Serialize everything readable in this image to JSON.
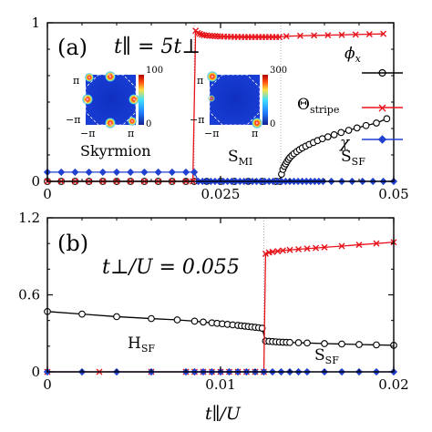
{
  "chart_data": [
    {
      "type": "line",
      "panel_label": "(a)",
      "annotation": "t∥ = 5t⊥",
      "xlim": [
        0,
        0.05
      ],
      "ylim": [
        0,
        1
      ],
      "x_ticks": [
        0,
        0.025,
        0.05
      ],
      "x_tick_labels": [
        "0",
        "0.025",
        "0.05"
      ],
      "y_ticks": [
        0,
        1
      ],
      "y_tick_labels": [
        "0",
        "1"
      ],
      "legend": {
        "placement": "right",
        "entries": [
          {
            "series": "phi",
            "label_main": "ϕ",
            "label_sub": "x"
          },
          {
            "series": "theta",
            "label_main": "Θ",
            "label_sub": "stripe"
          },
          {
            "series": "chi",
            "label_main": "χ",
            "label_sub": ""
          }
        ]
      },
      "region_labels": [
        {
          "main": "Skyrmion",
          "sub": "",
          "x": 0.011,
          "y": 0.3
        },
        {
          "main": "S",
          "sub": "MI",
          "x": 0.0265,
          "y": 0.18
        },
        {
          "main": "S",
          "sub": "SF",
          "x": 0.043,
          "y": 0.18
        }
      ],
      "transitions": [
        0.0212,
        0.0337
      ],
      "series": [
        {
          "id": "phi",
          "color": "#000000",
          "marker": "circle",
          "x": [
            0.0,
            0.002,
            0.004,
            0.006,
            0.008,
            0.01,
            0.012,
            0.014,
            0.016,
            0.018,
            0.02,
            0.0212,
            0.023,
            0.025,
            0.027,
            0.029,
            0.031,
            0.033,
            0.0336,
            0.0338,
            0.034,
            0.0342,
            0.0344,
            0.0346,
            0.0348,
            0.035,
            0.0353,
            0.0356,
            0.036,
            0.0364,
            0.0368,
            0.0373,
            0.0378,
            0.0384,
            0.039,
            0.0397,
            0.0405,
            0.0414,
            0.0424,
            0.0435,
            0.0447,
            0.046,
            0.0475,
            0.049
          ],
          "y": [
            0,
            0,
            0,
            0,
            0,
            0,
            0,
            0,
            0,
            0,
            0,
            0,
            0,
            0,
            0,
            0,
            0,
            0,
            0,
            0.045,
            0.075,
            0.095,
            0.11,
            0.125,
            0.138,
            0.15,
            0.163,
            0.175,
            0.188,
            0.2,
            0.211,
            0.222,
            0.233,
            0.245,
            0.257,
            0.269,
            0.281,
            0.294,
            0.308,
            0.322,
            0.337,
            0.352,
            0.368,
            0.395
          ]
        },
        {
          "id": "theta",
          "color": "#e8141b",
          "marker": "x",
          "x": [
            0.0,
            0.002,
            0.004,
            0.006,
            0.008,
            0.01,
            0.012,
            0.014,
            0.016,
            0.018,
            0.02,
            0.021,
            0.0214,
            0.0217,
            0.022,
            0.0223,
            0.0226,
            0.023,
            0.0234,
            0.0238,
            0.0242,
            0.0246,
            0.025,
            0.0255,
            0.026,
            0.0265,
            0.027,
            0.0275,
            0.028,
            0.0285,
            0.029,
            0.0295,
            0.03,
            0.0305,
            0.031,
            0.0315,
            0.032,
            0.0325,
            0.033,
            0.0335,
            0.0345,
            0.0365,
            0.0385,
            0.0405,
            0.0425,
            0.0445,
            0.0465,
            0.0485
          ],
          "y": [
            0,
            0,
            0,
            0,
            0,
            0,
            0,
            0,
            0,
            0,
            0,
            0,
            0.95,
            0.935,
            0.93,
            0.925,
            0.922,
            0.92,
            0.918,
            0.917,
            0.916,
            0.915,
            0.914,
            0.913,
            0.912,
            0.912,
            0.911,
            0.911,
            0.911,
            0.91,
            0.91,
            0.91,
            0.91,
            0.91,
            0.91,
            0.91,
            0.91,
            0.91,
            0.91,
            0.91,
            0.915,
            0.918,
            0.92,
            0.922,
            0.924,
            0.926,
            0.928,
            0.93
          ]
        },
        {
          "id": "chi",
          "color": "#2040d0",
          "marker": "diamond",
          "x": [
            0.0,
            0.002,
            0.004,
            0.006,
            0.008,
            0.01,
            0.012,
            0.014,
            0.016,
            0.018,
            0.02,
            0.0212,
            0.0218,
            0.0224,
            0.023,
            0.0236,
            0.0242,
            0.0248,
            0.0254,
            0.026,
            0.0266,
            0.0272,
            0.0278,
            0.0284,
            0.029,
            0.0296,
            0.0302,
            0.0308,
            0.0314,
            0.032,
            0.0326,
            0.0332,
            0.0338,
            0.0344,
            0.035,
            0.0356,
            0.0362,
            0.0368,
            0.0374,
            0.038,
            0.0386,
            0.0392,
            0.0398,
            0.041,
            0.0425,
            0.044,
            0.0455,
            0.047,
            0.0485,
            0.05
          ],
          "y": [
            0.058,
            0.058,
            0.058,
            0.058,
            0.058,
            0.058,
            0.058,
            0.058,
            0.058,
            0.058,
            0.058,
            0.058,
            0,
            0,
            0,
            0,
            0,
            0,
            0,
            0,
            0,
            0,
            0,
            0,
            0,
            0,
            0,
            0,
            0,
            0,
            0,
            0,
            0,
            0,
            0,
            0,
            0,
            0,
            0,
            0,
            0,
            0,
            0,
            0,
            0,
            0,
            0,
            0,
            0,
            0
          ]
        }
      ],
      "insets": [
        {
          "id": "skyrmion-inset",
          "colorbar_max": "100",
          "colorbar_min": "0",
          "axis_labels": [
            "π",
            "−π",
            "−π",
            "π"
          ]
        },
        {
          "id": "smi-inset",
          "colorbar_max": "300",
          "colorbar_min": "0",
          "axis_labels": [
            "π",
            "−π",
            "−π",
            "π"
          ]
        }
      ]
    },
    {
      "type": "line",
      "panel_label": "(b)",
      "annotation": "t⊥/U = 0.055",
      "xlim": [
        0,
        0.02
      ],
      "ylim": [
        0,
        1.2
      ],
      "x_ticks": [
        0,
        0.01,
        0.02
      ],
      "x_tick_labels": [
        "0",
        "0.01",
        "0.02"
      ],
      "y_ticks": [
        0,
        0.6,
        1.2
      ],
      "y_tick_labels": [
        "0",
        "0.6",
        "1.2"
      ],
      "xlabel": "t∥/U",
      "region_labels": [
        {
          "main": "H",
          "sub": "SF",
          "x": 0.0035,
          "y": 0.2
        },
        {
          "main": "S",
          "sub": "SF",
          "x": 0.0153,
          "y": 0.08
        }
      ],
      "transitions": [
        0.0125
      ],
      "series": [
        {
          "id": "phi",
          "color": "#000000",
          "marker": "circle",
          "x": [
            0.0,
            0.002,
            0.004,
            0.006,
            0.0075,
            0.0085,
            0.009,
            0.0095,
            0.0098,
            0.0101,
            0.0104,
            0.0107,
            0.011,
            0.0112,
            0.0114,
            0.0116,
            0.0118,
            0.012,
            0.0122,
            0.0124,
            0.0126,
            0.0128,
            0.013,
            0.0132,
            0.0134,
            0.0136,
            0.0138,
            0.014,
            0.0145,
            0.015,
            0.016,
            0.017,
            0.018,
            0.019,
            0.02
          ],
          "y": [
            0.47,
            0.45,
            0.43,
            0.415,
            0.405,
            0.395,
            0.388,
            0.382,
            0.378,
            0.374,
            0.37,
            0.366,
            0.362,
            0.359,
            0.356,
            0.353,
            0.35,
            0.347,
            0.344,
            0.34,
            0.24,
            0.238,
            0.236,
            0.234,
            0.232,
            0.231,
            0.23,
            0.229,
            0.227,
            0.225,
            0.22,
            0.217,
            0.213,
            0.21,
            0.207
          ]
        },
        {
          "id": "theta",
          "color": "#e8141b",
          "marker": "x",
          "x": [
            0.0,
            0.003,
            0.006,
            0.008,
            0.0085,
            0.009,
            0.0095,
            0.01,
            0.0105,
            0.011,
            0.0115,
            0.012,
            0.0125,
            0.0126,
            0.0128,
            0.013,
            0.0133,
            0.0136,
            0.014,
            0.0145,
            0.015,
            0.0155,
            0.016,
            0.017,
            0.018,
            0.019,
            0.02
          ],
          "y": [
            0,
            0,
            0,
            0,
            0,
            0,
            0,
            0,
            0,
            0,
            0,
            0,
            0,
            0.92,
            0.93,
            0.935,
            0.94,
            0.945,
            0.95,
            0.955,
            0.96,
            0.965,
            0.97,
            0.98,
            0.99,
            1.0,
            1.01
          ]
        },
        {
          "id": "chi",
          "color": "#2040d0",
          "marker": "diamond",
          "x": [
            0.0,
            0.002,
            0.004,
            0.006,
            0.008,
            0.0085,
            0.009,
            0.0095,
            0.01,
            0.0105,
            0.011,
            0.0115,
            0.012,
            0.0125,
            0.013,
            0.0135,
            0.014,
            0.0145,
            0.015,
            0.016,
            0.017,
            0.018,
            0.019,
            0.02
          ],
          "y": [
            0,
            0,
            0,
            0,
            0,
            0,
            0,
            0,
            0,
            0,
            0,
            0,
            0,
            0,
            0,
            0,
            0,
            0,
            0,
            0,
            0,
            0,
            0,
            0
          ]
        }
      ]
    }
  ]
}
